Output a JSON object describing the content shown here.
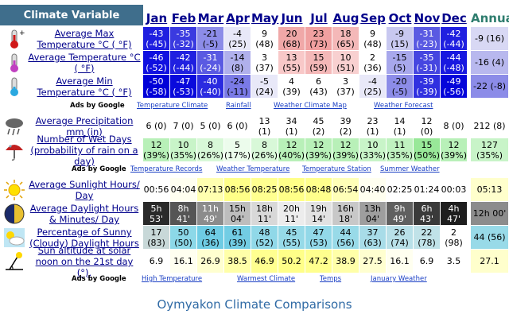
{
  "header": {
    "variable_label": "Climate Variable",
    "months": [
      "Jan",
      "Feb",
      "Mar",
      "Apr",
      "May",
      "Jun",
      "Jul",
      "Aug",
      "Sep",
      "Oct",
      "Nov",
      "Dec"
    ],
    "annual_label": "Annual"
  },
  "rows": [
    {
      "label": "Average Max Temperature °C ( °F)",
      "icon": "thermometer-hot-icon",
      "cells": [
        "-43\n(-45)",
        "-35\n(-32)",
        "-21\n(-5)",
        "-4\n(25)",
        "9 (48)",
        "20\n(68)",
        "23\n(73)",
        "18\n(65)",
        "9 (48)",
        "-9\n(15)",
        "-31\n(-23)",
        "-42\n(-44)"
      ],
      "colors": [
        "#1f1fe0",
        "#3a3ae0",
        "#8c8ce8",
        "#e8e8f8",
        "#fff",
        "#f0a8a8",
        "#f0a0a0",
        "#f4b8b8",
        "#fff",
        "#c8c8f0",
        "#5a5ae2",
        "#2020e0"
      ],
      "annual": "-9 (16)",
      "annual_color": "#d8d8f4"
    },
    {
      "label": "Average Temperature °C ( °F)",
      "icon": "thermometer-mid-icon",
      "cells": [
        "-46\n(-52)",
        "-42\n(-44)",
        "-31\n(-24)",
        "-14\n(8)",
        "3 (37)",
        "13\n(55)",
        "15\n(59)",
        "10\n(51)",
        "2 (36)",
        "-15\n(5)",
        "-35\n(-31)",
        "-44\n(-48)"
      ],
      "colors": [
        "#1010e0",
        "#2020e0",
        "#5a5ae2",
        "#b0b0ec",
        "#fff",
        "#f8c8c8",
        "#f4b8b8",
        "#f8d0d0",
        "#fff",
        "#a8a8ec",
        "#4646e0",
        "#1818e0"
      ],
      "annual": "-16 (4)",
      "annual_color": "#b8b8ee"
    },
    {
      "label": "Average Min Temperature °C ( °F)",
      "icon": "thermometer-cold-icon",
      "cells": [
        "-50\n(-58)",
        "-47\n(-53)",
        "-40\n(-40)",
        "-24\n(-11)",
        "-5\n(24)",
        "4 (39)",
        "6 (43)",
        "3 (37)",
        "-4\n(25)",
        "-20\n(-5)",
        "-39\n(-39)",
        "-49\n(-56)"
      ],
      "colors": [
        "#0000d8",
        "#0a0adc",
        "#2a2ae0",
        "#7a7ae6",
        "#e8e8f8",
        "#fff",
        "#fff",
        "#fff",
        "#e8e8f8",
        "#8c8ce8",
        "#3030e0",
        "#0505da"
      ],
      "annual": "-22 (-8)",
      "annual_color": "#8c8ce8"
    },
    {
      "label": "Average Precipitation mm (in)",
      "icon": "rain-cloud-icon",
      "cells": [
        "6 (0)",
        "7 (0)",
        "5 (0)",
        "6 (0)",
        "13 (1)",
        "34 (1)",
        "45 (2)",
        "39 (2)",
        "23 (1)",
        "14 (1)",
        "12 (0)",
        "8 (0)"
      ],
      "colors": [
        "#fff",
        "#fff",
        "#fff",
        "#fff",
        "#fff",
        "#fff",
        "#fff",
        "#fff",
        "#fff",
        "#fff",
        "#fff",
        "#fff"
      ],
      "annual": "212 (8)",
      "annual_color": "#fff"
    },
    {
      "label": "Number of Wet Days (probability of rain on a day)",
      "icon": "umbrella-icon",
      "cells": [
        "12\n(39%)",
        "10\n(35%)",
        "8\n(26%)",
        "5\n(17%)",
        "8\n(26%)",
        "12\n(40%)",
        "12\n(39%)",
        "12\n(39%)",
        "10\n(33%)",
        "11\n(35%)",
        "15\n(50%)",
        "12\n(39%)"
      ],
      "colors": [
        "#b8f0b8",
        "#c8f4c8",
        "#d8f8d8",
        "#ecfcec",
        "#d8f8d8",
        "#b8f0b8",
        "#b8f0b8",
        "#b8f0b8",
        "#c8f4c8",
        "#c0f2c0",
        "#98e898",
        "#b8f0b8"
      ],
      "annual": "127\n(35%)",
      "annual_color": "#c8f4c8"
    },
    {
      "label": "Average Sunlight Hours/ Day",
      "icon": "sun-icon",
      "cells": [
        "00:56",
        "04:04",
        "07:13",
        "08:56",
        "08:25",
        "08:56",
        "08:48",
        "06:54",
        "04:40",
        "02:25",
        "01:24",
        "00:03"
      ],
      "colors": [
        "#fff",
        "#fffff0",
        "#ffffb0",
        "#ffff88",
        "#ffff90",
        "#ffff88",
        "#ffff8c",
        "#ffffb8",
        "#fffff0",
        "#fff",
        "#fff",
        "#fff"
      ],
      "annual": "05:13",
      "annual_color": "#ffffcc"
    },
    {
      "label": "Average Daylight Hours & Minutes/ Day",
      "icon": "globe-night-icon",
      "cells": [
        "5h 53'",
        "8h 41'",
        "11h\n49'",
        "15h\n04'",
        "18h\n11'",
        "20h\n11'",
        "19h\n14'",
        "16h\n18'",
        "13h\n04'",
        "9h 49'",
        "6h 43'",
        "4h 47'"
      ],
      "colors": [
        "#2a2a2a",
        "#555",
        "#8c8c8c",
        "#bdbdbd",
        "#d8d8d8",
        "#ececec",
        "#e2e2e2",
        "#c8c8c8",
        "#9e9e9e",
        "#606060",
        "#3a3a3a",
        "#1e1e1e"
      ],
      "text_colors": [
        "#fff",
        "#fff",
        "#fff",
        "#000",
        "#000",
        "#000",
        "#000",
        "#000",
        "#000",
        "#fff",
        "#fff",
        "#fff"
      ],
      "annual": "12h 00'",
      "annual_color": "#8c8c8c",
      "annual_text_color": "#000"
    },
    {
      "label": "Percentage of Sunny (Cloudy) Daylight Hours",
      "icon": "sun-cloud-icon",
      "cells": [
        "17\n(83)",
        "50\n(50)",
        "64\n(36)",
        "61\n(39)",
        "48\n(52)",
        "45\n(55)",
        "47\n(53)",
        "44\n(56)",
        "37\n(63)",
        "26\n(74)",
        "22\n(78)",
        "2 (98)"
      ],
      "colors": [
        "#c8d8d8",
        "#8cd8e8",
        "#6ecce4",
        "#72cde4",
        "#90d8e8",
        "#96dae8",
        "#92d8e8",
        "#98dae8",
        "#a8dce8",
        "#b8e0e8",
        "#c0e2e8",
        "#fff"
      ],
      "annual": "44 (56)",
      "annual_color": "#98dae8"
    },
    {
      "label": "Sun altitude at solar noon on the 21st day (°).",
      "icon": "sun-angle-icon",
      "cells": [
        "6.9",
        "16.1",
        "26.9",
        "38.5",
        "46.9",
        "50.2",
        "47.2",
        "38.9",
        "27.5",
        "16.1",
        "6.9",
        "3.5"
      ],
      "colors": [
        "#fff",
        "#fffff0",
        "#ffffd0",
        "#ffffa8",
        "#ffff90",
        "#ffff88",
        "#ffff8e",
        "#ffffa8",
        "#ffffd0",
        "#fffff0",
        "#fff",
        "#fff"
      ],
      "annual": "27.1",
      "annual_color": "#ffffcc"
    }
  ],
  "ads": [
    {
      "title": "Ads by Google",
      "links": [
        "Temperature Climate",
        "Rainfall",
        "Weather Climate Map",
        "Weather Forecast"
      ]
    },
    {
      "title": "Ads by Google",
      "links": [
        "Temperature Records",
        "Weather Temperature",
        "Temperature Station",
        "Summer Weather"
      ]
    },
    {
      "title": "Ads by Google",
      "links": [
        "High Temperature",
        "Warmest Climate",
        "Temps",
        "January Weather"
      ]
    }
  ],
  "footer": {
    "title": "Oymyakon Climate Comparisons"
  },
  "colors": {
    "header_bg": "#3f6e8c",
    "link": "#00008b",
    "ad_link": "#1a3fc4",
    "annual_header": "#2e7d6e"
  }
}
